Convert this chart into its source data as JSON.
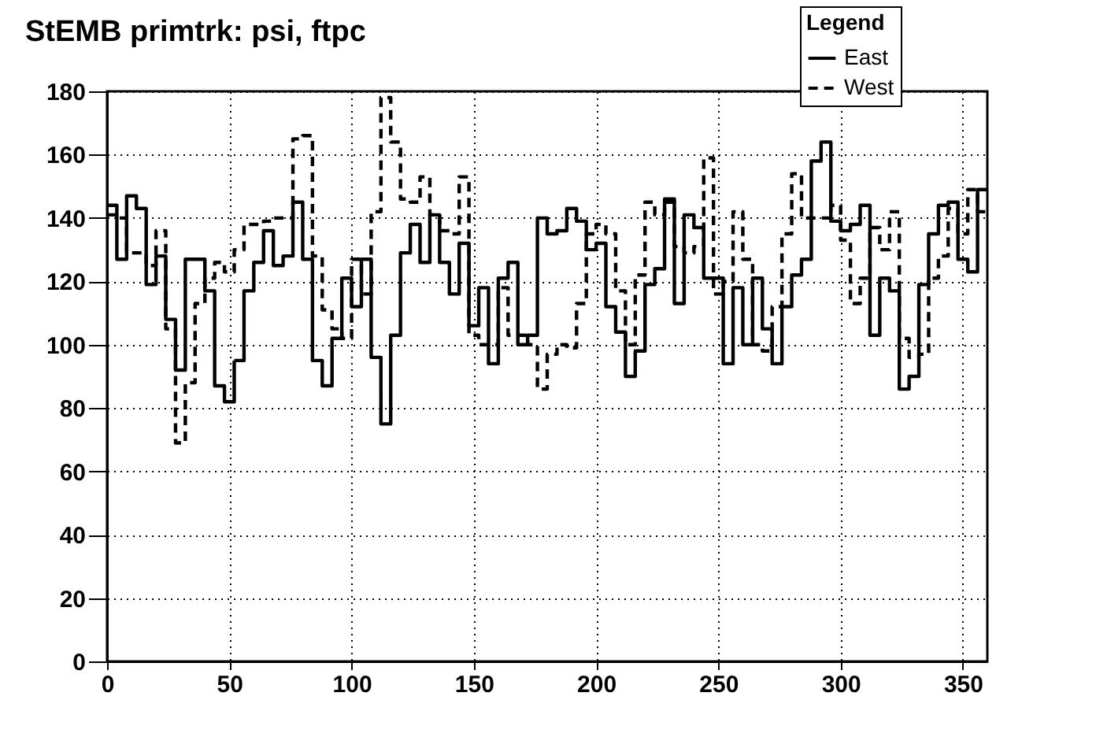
{
  "chart_data": {
    "type": "histogram",
    "title": "StEMB primtrk: psi, ftpc",
    "bins": [
      0,
      4,
      8,
      12,
      16,
      20,
      24,
      28,
      32,
      36,
      40,
      44,
      48,
      52,
      56,
      60,
      64,
      68,
      72,
      76,
      80,
      84,
      88,
      92,
      96,
      100,
      104,
      108,
      112,
      116,
      120,
      124,
      128,
      132,
      136,
      140,
      144,
      148,
      152,
      156,
      160,
      164,
      168,
      172,
      176,
      180,
      184,
      188,
      192,
      196,
      200,
      204,
      208,
      212,
      216,
      220,
      224,
      228,
      232,
      236,
      240,
      244,
      248,
      252,
      256,
      260,
      264,
      268,
      272,
      276,
      280,
      284,
      288,
      292,
      296,
      300,
      304,
      308,
      312,
      316,
      320,
      324,
      328,
      332,
      336,
      340,
      344,
      348,
      352,
      356,
      360
    ],
    "series": [
      {
        "name": "East",
        "color": "#000000",
        "line_style": "solid",
        "values": [
          144,
          127,
          147,
          143,
          119,
          128,
          108,
          92,
          127,
          127,
          117,
          87,
          82,
          95,
          117,
          126,
          136,
          125,
          128,
          145,
          127,
          95,
          87,
          102,
          121,
          112,
          127,
          96,
          75,
          103,
          129,
          138,
          126,
          141,
          126,
          116,
          132,
          106,
          118,
          94,
          121,
          126,
          100,
          103,
          140,
          135,
          136,
          143,
          139,
          130,
          132,
          112,
          104,
          90,
          98,
          119,
          124,
          146,
          113,
          141,
          137,
          121,
          121,
          94,
          118,
          100,
          121,
          105,
          94,
          112,
          122,
          127,
          158,
          164,
          139,
          136,
          138,
          144,
          103,
          121,
          117,
          86,
          90,
          119,
          135,
          144,
          145,
          127,
          123,
          149
        ]
      },
      {
        "name": "West",
        "color": "#000000",
        "line_style": "dashed",
        "values": [
          141,
          140,
          129,
          129,
          125,
          136,
          105,
          69,
          88,
          113,
          121,
          126,
          123,
          130,
          138,
          138,
          139,
          140,
          140,
          165,
          166,
          128,
          111,
          105,
          102,
          127,
          116,
          142,
          178,
          164,
          146,
          145,
          153,
          141,
          136,
          135,
          153,
          103,
          100,
          100,
          118,
          103,
          103,
          100,
          86,
          97,
          100,
          99,
          113,
          135,
          138,
          135,
          117,
          100,
          122,
          145,
          141,
          145,
          131,
          129,
          131,
          159,
          116,
          120,
          142,
          127,
          100,
          98,
          112,
          135,
          154,
          140,
          140,
          140,
          144,
          133,
          113,
          121,
          137,
          130,
          142,
          102,
          96,
          97,
          121,
          128,
          143,
          135,
          149,
          142
        ]
      }
    ],
    "xlim": [
      0,
      360
    ],
    "ylim": [
      0,
      180
    ],
    "xticks": [
      0,
      50,
      100,
      150,
      200,
      250,
      300,
      350
    ],
    "yticks": [
      0,
      20,
      40,
      60,
      80,
      100,
      120,
      140,
      160,
      180
    ],
    "grid": true,
    "legend": "top right",
    "legend_title": "Legend"
  }
}
